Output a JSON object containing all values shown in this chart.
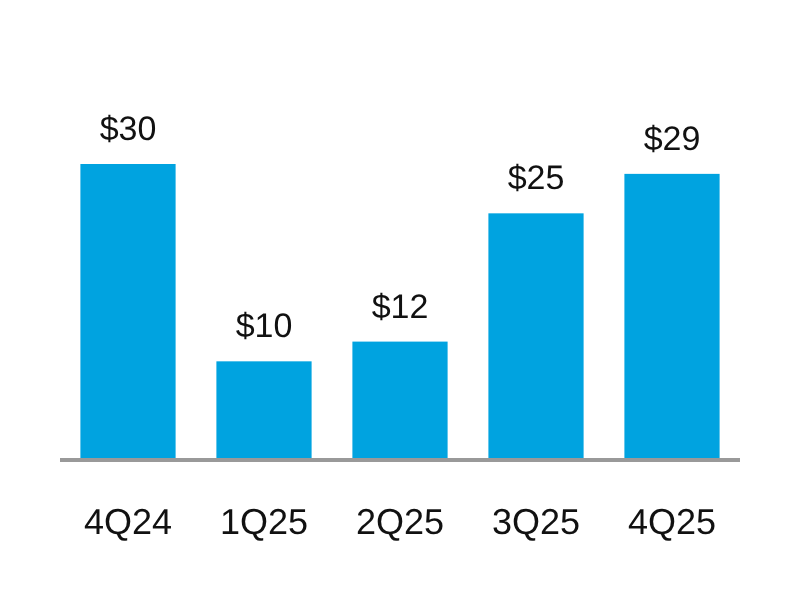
{
  "chart_data": {
    "type": "bar",
    "categories": [
      "4Q24",
      "1Q25",
      "2Q25",
      "3Q25",
      "4Q25"
    ],
    "values": [
      30,
      10,
      12,
      25,
      29
    ],
    "value_labels": [
      "$30",
      "$10",
      "$12",
      "$25",
      "$29"
    ],
    "color": "#00a3e0"
  }
}
